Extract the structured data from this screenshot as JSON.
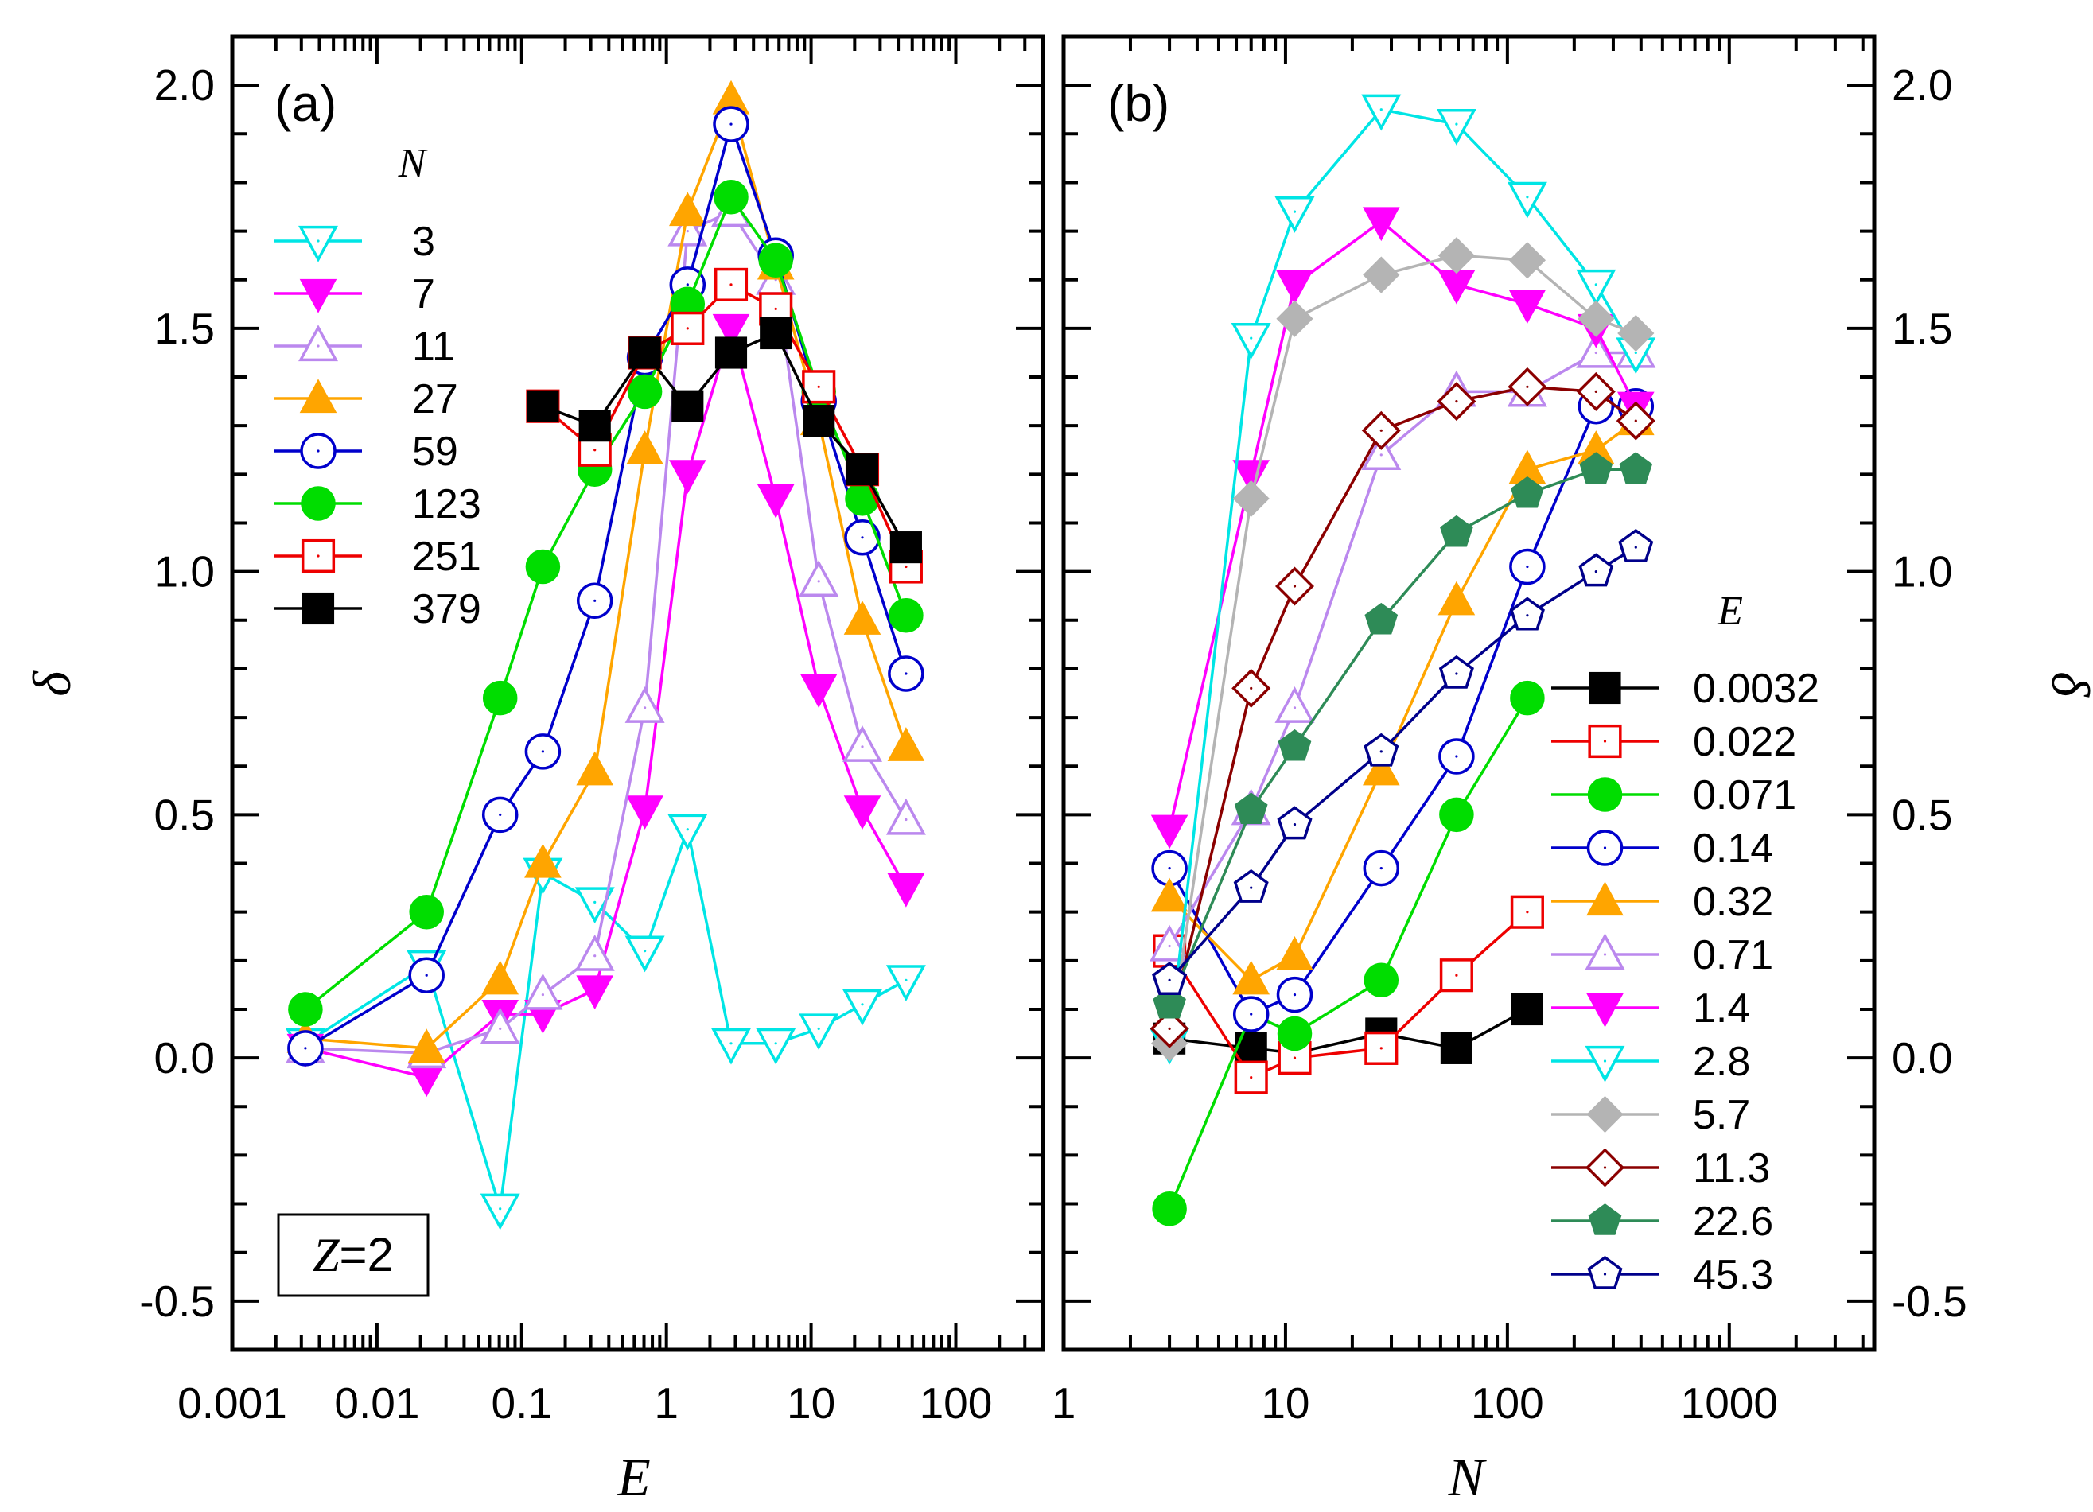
{
  "chart_data": [
    {
      "type": "line",
      "panel_label": "(a)",
      "xlabel": "E",
      "ylabel": "δ",
      "xscale": "log",
      "xlim": [
        0.001,
        400
      ],
      "ylim": [
        -0.6,
        2.1
      ],
      "x_ticks": [
        "0.001",
        "0.01",
        "0.1",
        "1",
        "10",
        "100"
      ],
      "y_ticks": [
        "-0.5",
        "0.0",
        "0.5",
        "1.0",
        "1.5",
        "2.0"
      ],
      "legend_title": "N",
      "legend_position": "upper-left",
      "annotation": {
        "italic": "Z",
        "rest": "=2"
      },
      "x": [
        0.0032,
        0.022,
        0.071,
        0.14,
        0.32,
        0.71,
        1.4,
        2.8,
        5.7,
        11.3,
        22.6,
        45.3
      ],
      "series": [
        {
          "name": "3",
          "color": "#00e5e5",
          "marker": "triangle-down-open",
          "values": [
            0.03,
            0.19,
            -0.31,
            0.38,
            0.32,
            0.22,
            0.47,
            0.03,
            0.03,
            0.06,
            0.11,
            0.16
          ]
        },
        {
          "name": "7",
          "color": "#ff00ff",
          "marker": "triangle-down-filled",
          "values": [
            0.02,
            -0.04,
            0.09,
            0.09,
            0.14,
            0.51,
            1.2,
            1.5,
            1.15,
            0.76,
            0.51,
            0.35
          ]
        },
        {
          "name": "11",
          "color": "#bb88ee",
          "marker": "triangle-up-open",
          "values": [
            0.02,
            0.01,
            0.06,
            0.13,
            0.21,
            0.72,
            1.7,
            1.74,
            1.6,
            0.98,
            0.64,
            0.49
          ]
        },
        {
          "name": "27",
          "color": "#ffa500",
          "marker": "triangle-up-filled",
          "values": [
            0.04,
            0.02,
            0.16,
            0.4,
            0.59,
            1.25,
            1.74,
            1.97,
            1.63,
            1.31,
            0.9,
            0.64
          ]
        },
        {
          "name": "59",
          "color": "#0000cc",
          "marker": "circle-open",
          "values": [
            0.02,
            0.17,
            0.5,
            0.63,
            0.94,
            1.44,
            1.59,
            1.92,
            1.65,
            1.35,
            1.07,
            0.79
          ]
        },
        {
          "name": "123",
          "color": "#00dd00",
          "marker": "circle-filled",
          "values": [
            0.1,
            0.3,
            0.74,
            1.01,
            1.21,
            1.37,
            1.55,
            1.77,
            1.64,
            1.37,
            1.15,
            0.91
          ]
        },
        {
          "name": "251",
          "color": "#ee0000",
          "marker": "square-open",
          "values": [
            null,
            null,
            null,
            1.34,
            1.25,
            1.45,
            1.5,
            1.59,
            1.54,
            1.38,
            1.21,
            1.01
          ]
        },
        {
          "name": "379",
          "color": "#000000",
          "marker": "square-filled",
          "values": [
            null,
            null,
            null,
            1.34,
            1.3,
            1.45,
            1.34,
            1.45,
            1.49,
            1.31,
            1.21,
            1.05
          ]
        }
      ]
    },
    {
      "type": "line",
      "panel_label": "(b)",
      "xlabel": "N",
      "ylabel": "δ",
      "xscale": "log",
      "xlim": [
        1,
        4500
      ],
      "ylim": [
        -0.6,
        2.1
      ],
      "x_ticks": [
        "1",
        "10",
        "100",
        "1000"
      ],
      "y_ticks": [
        "-0.5",
        "0.0",
        "0.5",
        "1.0",
        "1.5",
        "2.0"
      ],
      "legend_title": "E",
      "legend_position": "lower-right",
      "x": [
        3,
        7,
        11,
        27,
        59,
        123,
        251,
        379
      ],
      "series": [
        {
          "name": "0.0032",
          "color": "#000000",
          "marker": "square-filled",
          "values": [
            0.04,
            0.02,
            0.01,
            0.05,
            0.02,
            0.1,
            null,
            null
          ]
        },
        {
          "name": "0.022",
          "color": "#ee0000",
          "marker": "square-open",
          "values": [
            0.22,
            -0.04,
            0.0,
            0.02,
            0.17,
            0.3,
            null,
            null
          ]
        },
        {
          "name": "0.071",
          "color": "#00dd00",
          "marker": "circle-filled",
          "values": [
            -0.31,
            0.09,
            0.05,
            0.16,
            0.5,
            0.74,
            null,
            null
          ]
        },
        {
          "name": "0.14",
          "color": "#0000cc",
          "marker": "circle-open",
          "values": [
            0.39,
            0.09,
            0.13,
            0.39,
            0.62,
            1.01,
            1.34,
            1.34
          ]
        },
        {
          "name": "0.32",
          "color": "#ffa500",
          "marker": "triangle-up-filled",
          "values": [
            0.33,
            0.16,
            0.21,
            0.59,
            0.94,
            1.21,
            1.25,
            1.31
          ]
        },
        {
          "name": "0.71",
          "color": "#bb88ee",
          "marker": "triangle-up-open",
          "values": [
            0.23,
            0.51,
            0.72,
            1.24,
            1.37,
            1.37,
            1.45,
            1.45
          ]
        },
        {
          "name": "1.4",
          "color": "#ff00ff",
          "marker": "triangle-down-filled",
          "values": [
            0.47,
            1.2,
            1.59,
            1.72,
            1.59,
            1.55,
            1.5,
            1.34
          ]
        },
        {
          "name": "2.8",
          "color": "#00e5e5",
          "marker": "triangle-down-open",
          "values": [
            0.03,
            1.48,
            1.74,
            1.95,
            1.92,
            1.77,
            1.59,
            1.45
          ]
        },
        {
          "name": "5.7",
          "color": "#b4b4b4",
          "marker": "diamond-filled",
          "values": [
            0.03,
            1.15,
            1.52,
            1.61,
            1.65,
            1.64,
            1.52,
            1.49
          ]
        },
        {
          "name": "11.3",
          "color": "#8b0000",
          "marker": "diamond-open",
          "values": [
            0.06,
            0.76,
            0.97,
            1.29,
            1.35,
            1.38,
            1.37,
            1.31
          ]
        },
        {
          "name": "22.6",
          "color": "#2e8b57",
          "marker": "pentagon-filled",
          "values": [
            0.11,
            0.51,
            0.64,
            0.9,
            1.08,
            1.16,
            1.21,
            1.21
          ]
        },
        {
          "name": "45.3",
          "color": "#00008b",
          "marker": "pentagon-open",
          "values": [
            0.16,
            0.35,
            0.48,
            0.63,
            0.79,
            0.91,
            1.0,
            1.05
          ]
        }
      ]
    }
  ]
}
